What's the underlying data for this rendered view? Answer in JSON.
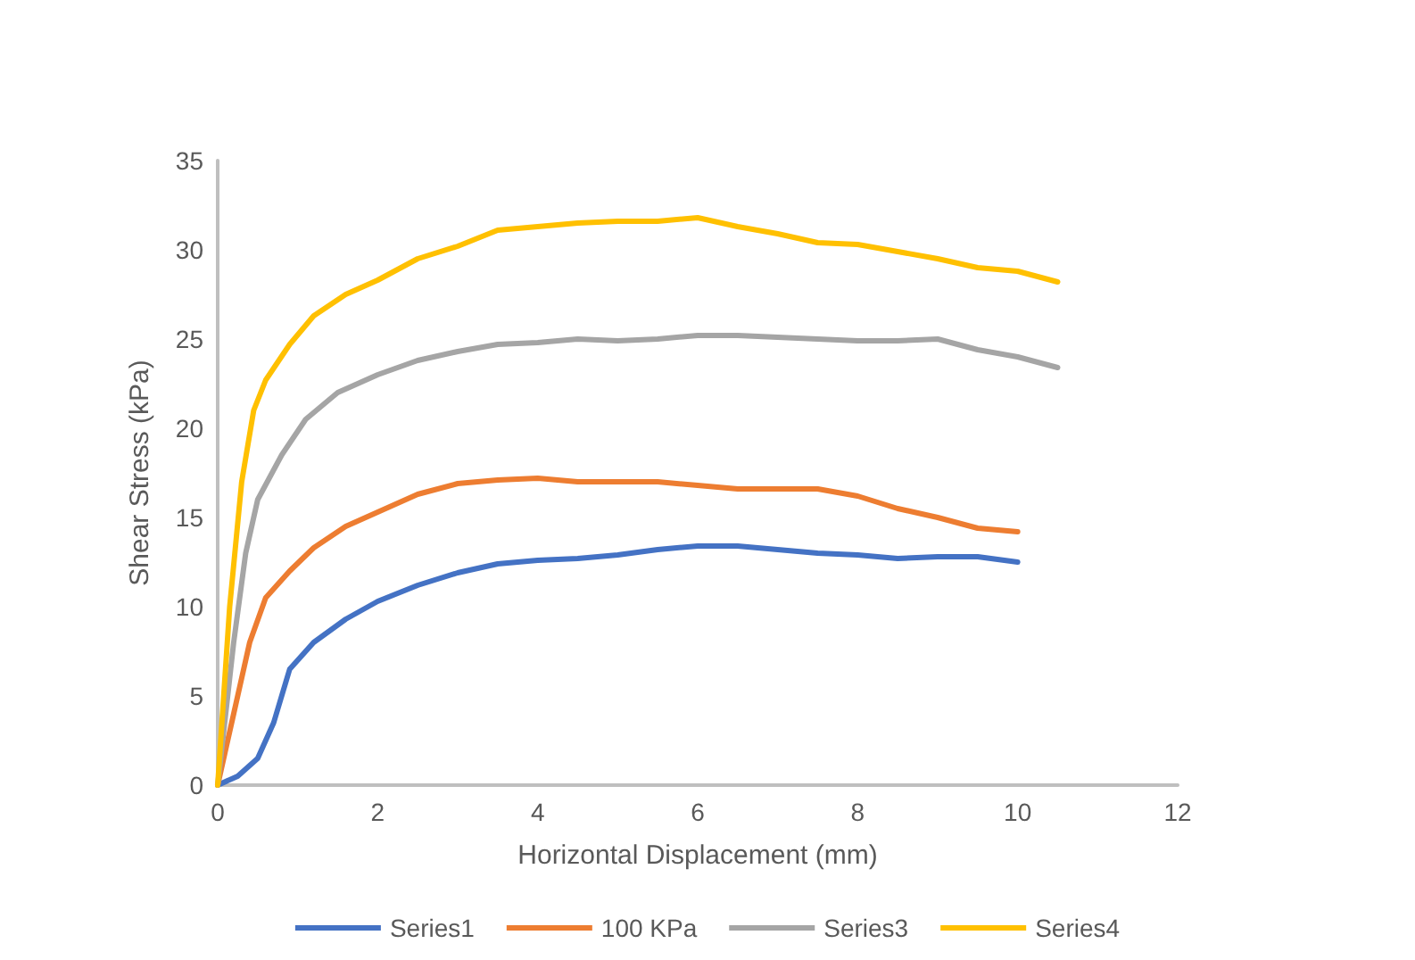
{
  "chart_data": {
    "type": "line",
    "xlabel": "Horizontal Displacement (mm)",
    "ylabel": "Shear Stress (kPa)",
    "xlim": [
      0,
      12
    ],
    "xticks": [
      0,
      2,
      4,
      6,
      8,
      10,
      12
    ],
    "ylim": [
      0,
      35
    ],
    "yticks": [
      0,
      5,
      10,
      15,
      20,
      25,
      30,
      35
    ],
    "grid": false,
    "legend": "bottom",
    "marker": "none",
    "line_style": "solid",
    "series": [
      {
        "name": "Series1",
        "color": "#4472c4",
        "x": [
          0,
          0.25,
          0.5,
          0.7,
          0.9,
          1.2,
          1.6,
          2,
          2.5,
          3,
          3.5,
          4,
          4.5,
          5,
          5.5,
          6,
          6.5,
          7,
          7.5,
          8,
          8.5,
          9,
          9.5,
          10
        ],
        "values": [
          0,
          0.5,
          1.5,
          3.5,
          6.5,
          8,
          9.3,
          10.3,
          11.2,
          11.9,
          12.4,
          12.6,
          12.7,
          12.9,
          13.2,
          13.4,
          13.4,
          13.2,
          13,
          12.9,
          12.7,
          12.8,
          12.8,
          12.5
        ]
      },
      {
        "name": "100 KPa",
        "color": "#ed7d31",
        "x": [
          0,
          0.2,
          0.4,
          0.6,
          0.9,
          1.2,
          1.6,
          2,
          2.5,
          3,
          3.5,
          4,
          4.5,
          5,
          5.5,
          6,
          6.5,
          7,
          7.5,
          8,
          8.5,
          9,
          9.5,
          10
        ],
        "values": [
          0,
          4,
          8,
          10.5,
          12,
          13.3,
          14.5,
          15.3,
          16.3,
          16.9,
          17.1,
          17.2,
          17,
          17,
          17,
          16.8,
          16.6,
          16.6,
          16.6,
          16.2,
          15.5,
          15,
          14.4,
          14.2
        ]
      },
      {
        "name": "Series3",
        "color": "#a5a5a5",
        "x": [
          0,
          0.2,
          0.35,
          0.5,
          0.8,
          1.1,
          1.5,
          2,
          2.5,
          3,
          3.5,
          4,
          4.5,
          5,
          5.5,
          6,
          6.5,
          7,
          7.5,
          8,
          8.5,
          9,
          9.5,
          10,
          10.5
        ],
        "values": [
          0,
          8,
          13,
          16,
          18.5,
          20.5,
          22,
          23,
          23.8,
          24.3,
          24.7,
          24.8,
          25,
          24.9,
          25,
          25.2,
          25.2,
          25.1,
          25,
          24.9,
          24.9,
          25,
          24.4,
          24,
          23.4
        ]
      },
      {
        "name": "Series4",
        "color": "#ffc000",
        "x": [
          0,
          0.15,
          0.3,
          0.45,
          0.6,
          0.9,
          1.2,
          1.6,
          2,
          2.5,
          3,
          3.5,
          4,
          4.5,
          5,
          5.5,
          6,
          6.5,
          7,
          7.5,
          8,
          8.5,
          9,
          9.5,
          10,
          10.5
        ],
        "values": [
          0,
          10,
          17,
          21,
          22.7,
          24.7,
          26.3,
          27.5,
          28.3,
          29.5,
          30.2,
          31.1,
          31.3,
          31.5,
          31.6,
          31.6,
          31.8,
          31.3,
          30.9,
          30.4,
          30.3,
          29.9,
          29.5,
          29,
          28.8,
          28.2
        ]
      }
    ]
  }
}
